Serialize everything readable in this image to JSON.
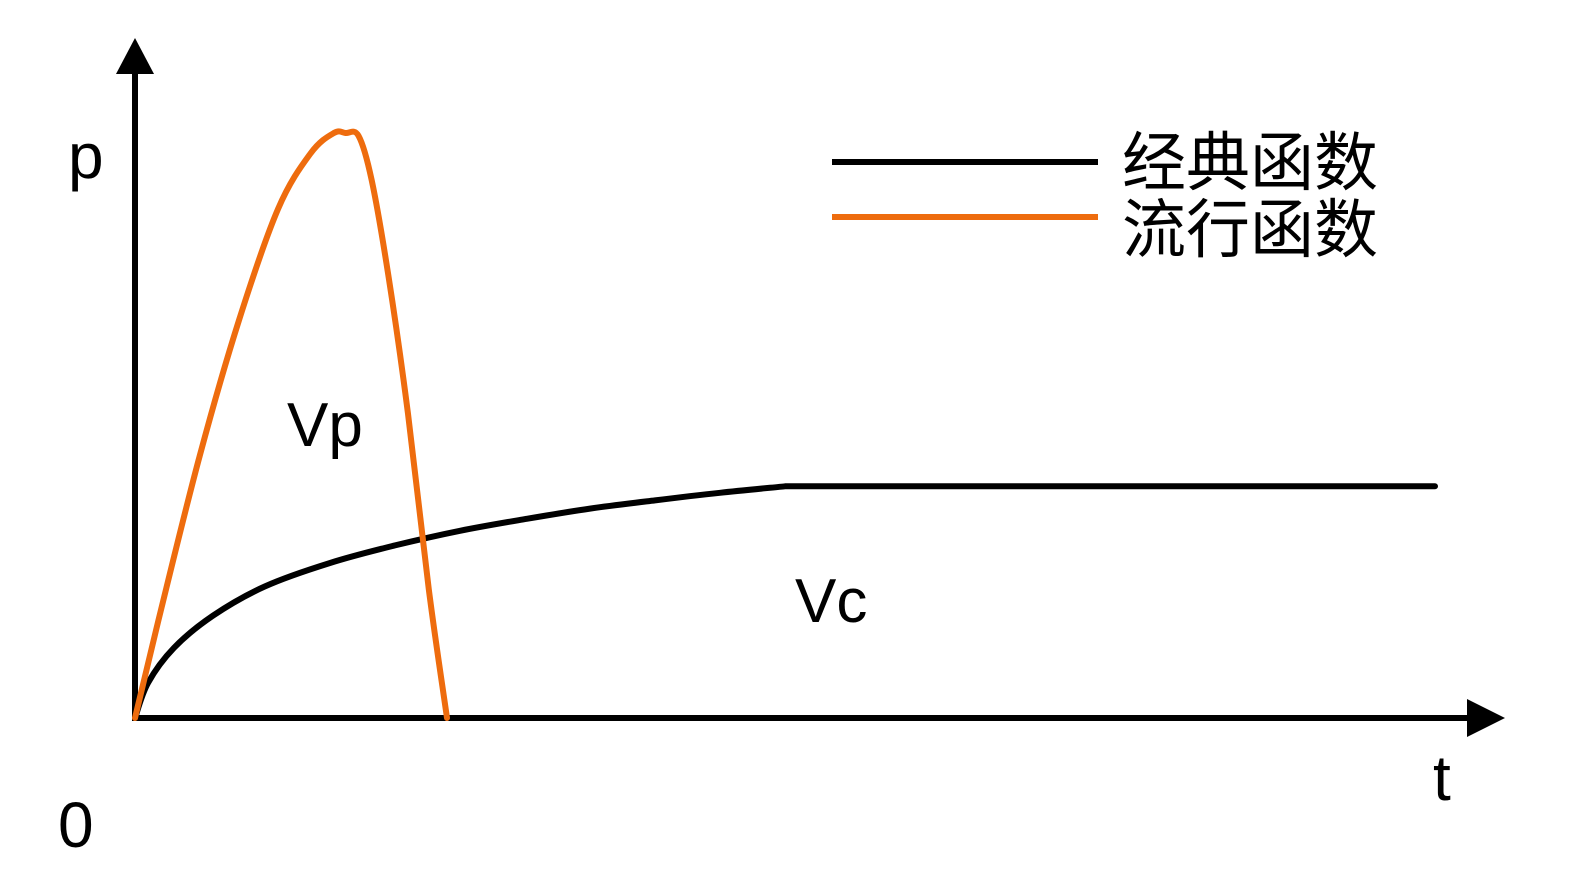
{
  "chart_data": {
    "type": "line",
    "title": "",
    "xlabel": "t",
    "ylabel": "p",
    "origin_label": "0",
    "xlim": [
      0,
      100
    ],
    "ylim": [
      0,
      100
    ],
    "grid": false,
    "legend_position": "top-right",
    "series": [
      {
        "name": "经典函数",
        "color": "#000000",
        "x": [
          0,
          1,
          3,
          6,
          10,
          15,
          20,
          25,
          30,
          35,
          40,
          45,
          50,
          100
        ],
        "y": [
          0,
          6,
          12,
          17.5,
          22.5,
          26.5,
          29.5,
          32,
          34,
          35.8,
          37.2,
          38.5,
          39.6,
          39.6
        ]
      },
      {
        "name": "流行函数",
        "color": "#ee6c0e",
        "x": [
          0,
          2,
          5,
          8,
          11,
          13.5,
          15.3,
          16.2,
          17.2,
          18.2,
          19.5,
          21,
          22.6,
          24,
          25.2,
          26.2
        ],
        "y": [
          0,
          18.5,
          45,
          68,
          87,
          96.5,
          100,
          100,
          99.5,
          92,
          75.5,
          52,
          22,
          0,
          0,
          0
        ]
      }
    ],
    "annotations": [
      {
        "text": "Vp",
        "x": 15.5,
        "y": 52
      },
      {
        "text": "Vc",
        "x": 50,
        "y": 20
      }
    ]
  }
}
